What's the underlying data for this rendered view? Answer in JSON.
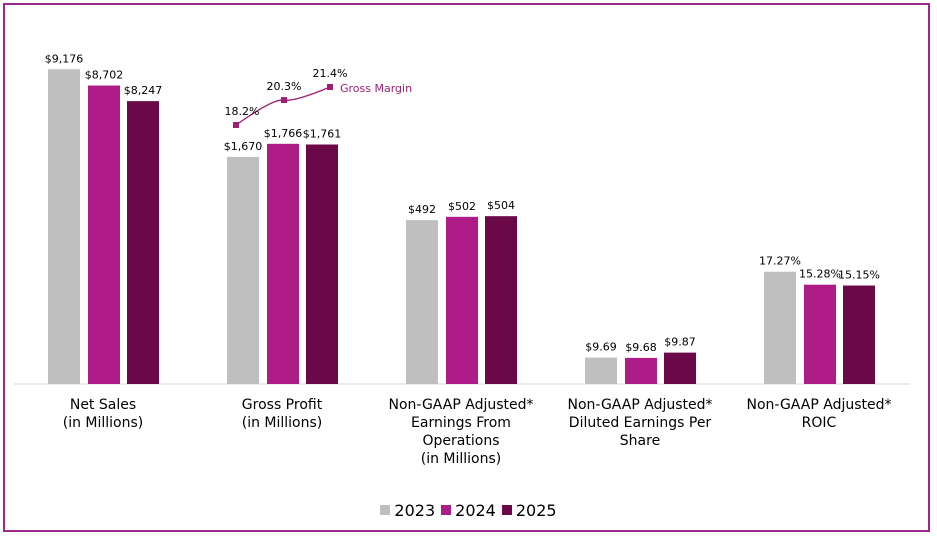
{
  "chart_data": {
    "type": "bar",
    "categories": [
      [
        "Net Sales",
        "(in Millions)"
      ],
      [
        "Gross Profit",
        "(in Millions)"
      ],
      [
        "Non-GAAP Adjusted*",
        "Earnings From",
        "Operations",
        "(in Millions)"
      ],
      [
        "Non-GAAP Adjusted*",
        "Diluted Earnings Per",
        "Share"
      ],
      [
        "Non-GAAP Adjusted*",
        "ROIC"
      ]
    ],
    "series": [
      {
        "name": "2023",
        "color": "#bfbfbf",
        "values": [
          9176,
          1670,
          492,
          9.69,
          17.27
        ],
        "labels": [
          "$9,176",
          "$1,670",
          "$492",
          "$9.69",
          "17.27%"
        ]
      },
      {
        "name": "2024",
        "color": "#ae1c87",
        "values": [
          8702,
          1766,
          502,
          9.68,
          15.28
        ],
        "labels": [
          "$8,702",
          "$1,766",
          "$502",
          "$9.68",
          "15.28%"
        ]
      },
      {
        "name": "2025",
        "color": "#6b0848",
        "values": [
          8247,
          1761,
          504,
          9.87,
          15.15
        ],
        "labels": [
          "$8,247",
          "$1,761",
          "$504",
          "$9.87",
          "15.15%"
        ]
      }
    ],
    "line_series": {
      "name": "Gross Margin",
      "color": "#9e1f74",
      "values": [
        18.2,
        20.3,
        21.4
      ],
      "labels": [
        "18.2%",
        "20.3%",
        "21.4%"
      ]
    },
    "legend_position": "bottom",
    "grid": false,
    "independent_scales_per_category": true
  }
}
